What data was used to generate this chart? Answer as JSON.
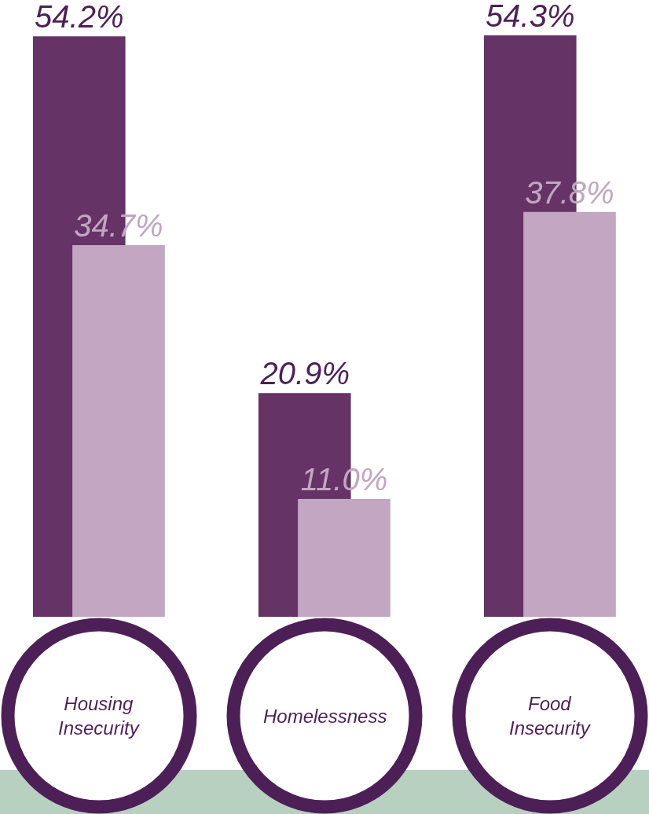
{
  "chart_data": {
    "type": "bar",
    "categories": [
      "Housing Insecurity",
      "Homelessness",
      "Food Insecurity"
    ],
    "series": [
      {
        "color": "#663366",
        "values": [
          54.2,
          20.9,
          54.3
        ],
        "value_labels": [
          "54.2%",
          "20.9%",
          "54.3%"
        ]
      },
      {
        "color": "#c2a6c2",
        "values": [
          34.7,
          11.0,
          37.8
        ],
        "value_labels": [
          "34.7%",
          "11.0%",
          "37.8%"
        ]
      }
    ]
  }
}
